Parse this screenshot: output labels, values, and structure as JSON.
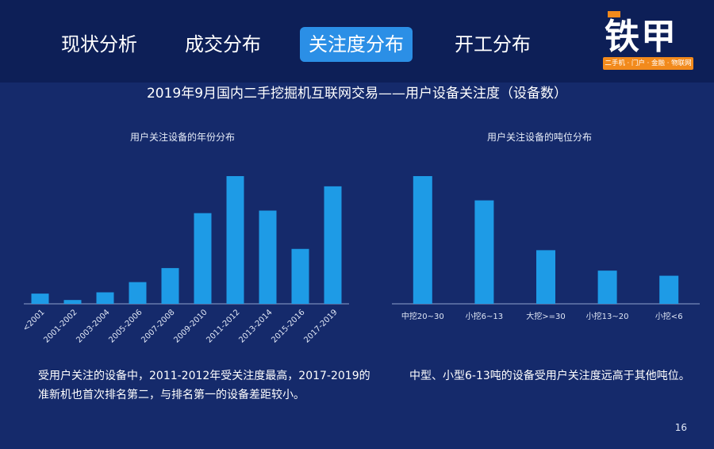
{
  "nav": {
    "items": [
      "现状分析",
      "成交分布",
      "关注度分布",
      "开工分布"
    ],
    "active_index": 2
  },
  "logo": {
    "main": "铁甲",
    "sub": "二手机 · 门户 · 金融 · 物联网"
  },
  "main_title": "2019年9月国内二手挖掘机互联网交易——用户设备关注度（设备数）",
  "colors": {
    "bar": "#1e9be6",
    "background": "#152a6b",
    "nav_active": "#2b8fe6",
    "logo_accent": "#f28a1c"
  },
  "chart_data": [
    {
      "type": "bar",
      "title": "用户关注设备的年份分布",
      "categories": [
        "<2001",
        "2001-2002",
        "2003-2004",
        "2005-2006",
        "2007-2008",
        "2009-2010",
        "2011-2012",
        "2013-2014",
        "2015-2016",
        "2017-2019"
      ],
      "values": [
        8,
        3,
        9,
        17,
        28,
        71,
        100,
        73,
        43,
        92
      ],
      "ylim": [
        0,
        100
      ],
      "grid": false,
      "legend": "none"
    },
    {
      "type": "bar",
      "title": "用户关注设备的吨位分布",
      "categories": [
        "中挖20~30",
        "小挖6~13",
        "大挖>=30",
        "小挖13~20",
        "小挖<6"
      ],
      "values": [
        100,
        81,
        42,
        26,
        22
      ],
      "ylim": [
        0,
        100
      ],
      "grid": false,
      "legend": "none"
    }
  ],
  "descriptions": {
    "left": [
      "受用户关注的设备中，2011-2012年受关注度最高，2017-2019的",
      "准新机也首次排名第二，与排名第一的设备差距较小。"
    ],
    "right": "中型、小型6-13吨的设备受用户关注度远高于其他吨位。"
  },
  "page_number": "16"
}
